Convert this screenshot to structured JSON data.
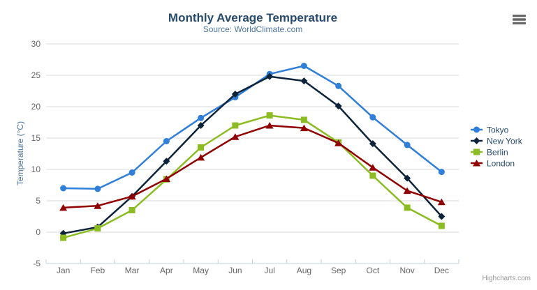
{
  "credits": "Highcharts.com",
  "icons": {
    "export_menu": "hamburger-menu-icon"
  },
  "chart_data": {
    "type": "line",
    "title": "Monthly Average Temperature",
    "subtitle": "Source: WorldClimate.com",
    "categories": [
      "Jan",
      "Feb",
      "Mar",
      "Apr",
      "May",
      "Jun",
      "Jul",
      "Aug",
      "Sep",
      "Oct",
      "Nov",
      "Dec"
    ],
    "series": [
      {
        "name": "Tokyo",
        "color": "#2f7ed8",
        "marker": "circle",
        "values": [
          7.0,
          6.9,
          9.5,
          14.5,
          18.2,
          21.5,
          25.2,
          26.5,
          23.3,
          18.3,
          13.9,
          9.6
        ]
      },
      {
        "name": "New York",
        "color": "#0d233a",
        "marker": "diamond",
        "values": [
          -0.2,
          0.8,
          5.7,
          11.3,
          17.0,
          22.0,
          24.8,
          24.1,
          20.1,
          14.1,
          8.6,
          2.5
        ]
      },
      {
        "name": "Berlin",
        "color": "#8bbc21",
        "marker": "square",
        "values": [
          -0.9,
          0.6,
          3.5,
          8.4,
          13.5,
          17.0,
          18.6,
          17.9,
          14.3,
          9.0,
          3.9,
          1.0
        ]
      },
      {
        "name": "London",
        "color": "#910000",
        "marker": "triangle",
        "values": [
          3.9,
          4.2,
          5.7,
          8.5,
          11.9,
          15.2,
          17.0,
          16.6,
          14.2,
          10.3,
          6.6,
          4.8
        ]
      }
    ],
    "xlabel": "",
    "ylabel": "Temperature (°C)",
    "ylim": [
      -5,
      30
    ],
    "ytick_step": 5,
    "grid": true,
    "legend_position": "right",
    "colors": {
      "grid_line": "#d8d8d8",
      "axis_line": "#c0d0e0",
      "title_text": "#274b6d",
      "subtitle_text": "#4d759e",
      "tick_label_text": "#666666",
      "legend_text": "#274b6d",
      "credits_text": "#999999",
      "export_icon": "#666666"
    }
  }
}
